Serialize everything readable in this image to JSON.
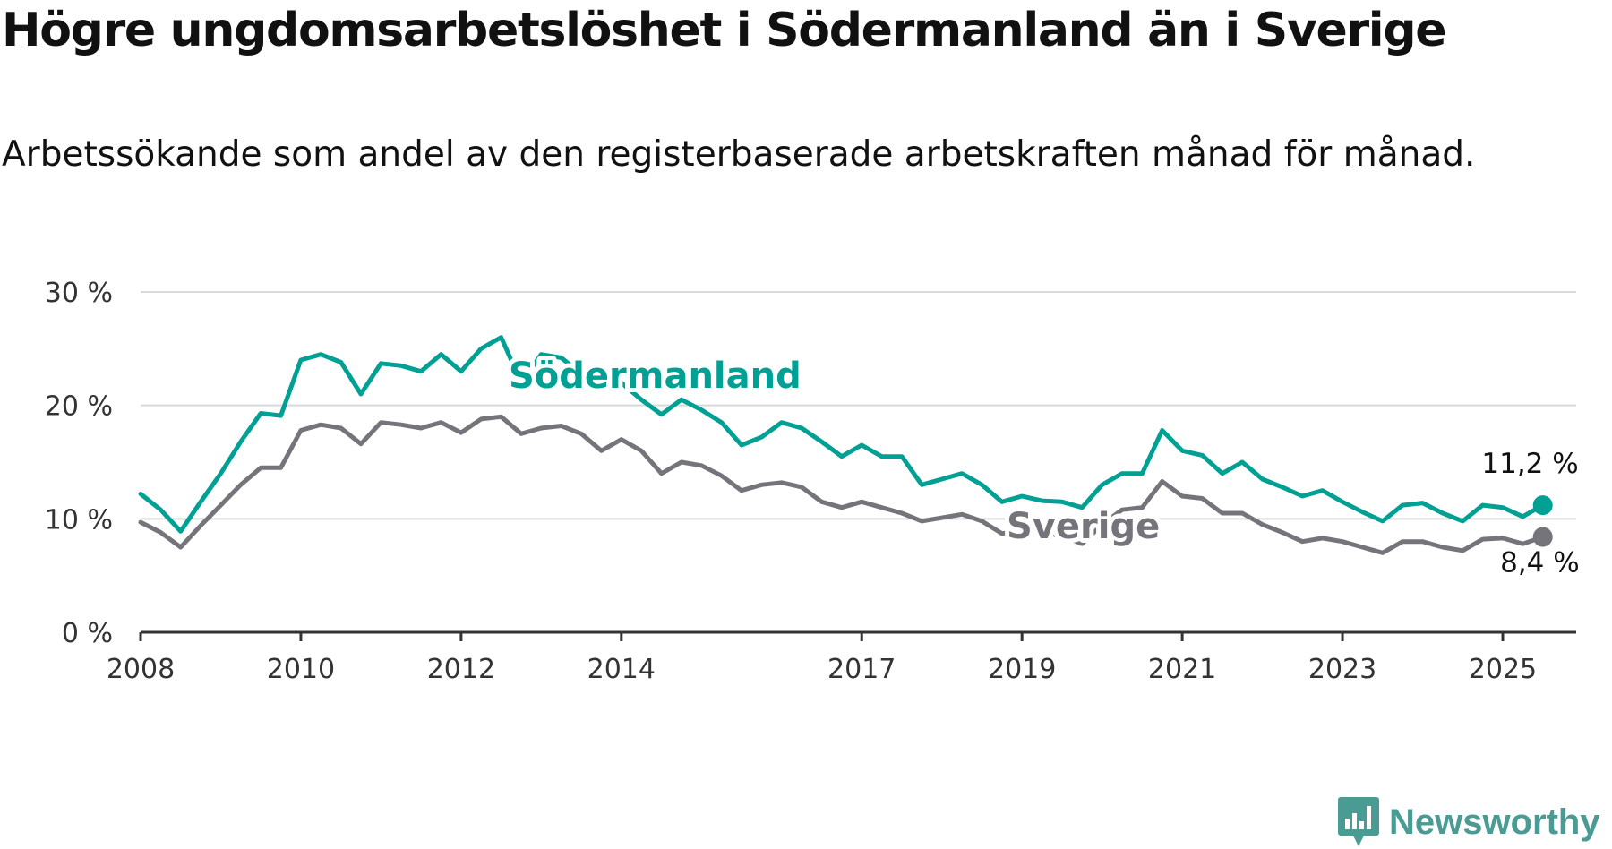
{
  "header": {
    "title": "Högre ungdomsarbetslöshet i Södermanland än i Sverige",
    "subtitle": "Arbetssökande som andel av den registerbaserade arbetskraften månad för månad."
  },
  "brand": {
    "name": "Newsworthy",
    "logo_icon": "bar-chart-bubble-icon",
    "color": "#4a9b93"
  },
  "colors": {
    "sodermanland": "#00a094",
    "sverige": "#76747b",
    "grid": "#d9d9d9",
    "axis": "#333333"
  },
  "chart_data": {
    "type": "line",
    "title": "Högre ungdomsarbetslöshet i Södermanland än i Sverige",
    "subtitle": "Arbetssökande som andel av den registerbaserade arbetskraften månad för månad.",
    "xlabel": "",
    "ylabel": "",
    "ylim": [
      0,
      30
    ],
    "xlim": [
      "2008-01",
      "2025-12"
    ],
    "y_ticks": [
      0,
      10,
      20,
      30
    ],
    "y_tick_labels": [
      "0 %",
      "10 %",
      "20 %",
      "30 %"
    ],
    "x_tick_labels": [
      "2008",
      "2010",
      "2012",
      "2014",
      "2017",
      "2019",
      "2021",
      "2023",
      "2025"
    ],
    "grid": true,
    "legend": "inline labels on lines",
    "x": [
      "2008-01",
      "2008-04",
      "2008-07",
      "2008-10",
      "2009-01",
      "2009-04",
      "2009-07",
      "2009-10",
      "2010-01",
      "2010-04",
      "2010-07",
      "2010-10",
      "2011-01",
      "2011-04",
      "2011-07",
      "2011-10",
      "2012-01",
      "2012-04",
      "2012-07",
      "2012-10",
      "2013-01",
      "2013-04",
      "2013-07",
      "2013-10",
      "2014-01",
      "2014-04",
      "2014-07",
      "2014-10",
      "2015-01",
      "2015-04",
      "2015-07",
      "2015-10",
      "2016-01",
      "2016-04",
      "2016-07",
      "2016-10",
      "2017-01",
      "2017-04",
      "2017-07",
      "2017-10",
      "2018-01",
      "2018-04",
      "2018-07",
      "2018-10",
      "2019-01",
      "2019-04",
      "2019-07",
      "2019-10",
      "2020-01",
      "2020-04",
      "2020-07",
      "2020-10",
      "2021-01",
      "2021-04",
      "2021-07",
      "2021-10",
      "2022-01",
      "2022-04",
      "2022-07",
      "2022-10",
      "2023-01",
      "2023-04",
      "2023-07",
      "2023-10",
      "2024-01",
      "2024-04",
      "2024-07",
      "2024-10",
      "2025-01",
      "2025-04",
      "2025-07"
    ],
    "series": [
      {
        "name": "Södermanland",
        "color": "#00a094",
        "values": [
          12.2,
          10.8,
          8.9,
          11.5,
          14.0,
          16.8,
          19.3,
          19.1,
          24.0,
          24.5,
          23.8,
          21.0,
          23.7,
          23.5,
          23.0,
          24.5,
          23.0,
          25.0,
          26.0,
          22.0,
          24.5,
          24.2,
          22.8,
          21.5,
          22.0,
          20.5,
          19.2,
          20.5,
          19.6,
          18.5,
          16.5,
          17.2,
          18.5,
          18.0,
          16.8,
          15.5,
          16.5,
          15.5,
          15.5,
          13.0,
          13.5,
          14.0,
          13.0,
          11.5,
          12.0,
          11.6,
          11.5,
          11.0,
          13.0,
          14.0,
          14.0,
          17.8,
          16.0,
          15.6,
          14.0,
          15.0,
          13.5,
          12.8,
          12.0,
          12.5,
          11.5,
          10.6,
          9.8,
          11.2,
          11.4,
          10.5,
          9.8,
          11.2,
          11.0,
          10.2,
          11.2
        ]
      },
      {
        "name": "Sverige",
        "color": "#76747b",
        "values": [
          9.7,
          8.8,
          7.5,
          9.4,
          11.2,
          13.0,
          14.5,
          14.5,
          17.8,
          18.3,
          18.0,
          16.6,
          18.5,
          18.3,
          18.0,
          18.5,
          17.6,
          18.8,
          19.0,
          17.5,
          18.0,
          18.2,
          17.5,
          16.0,
          17.0,
          16.0,
          14.0,
          15.0,
          14.7,
          13.8,
          12.5,
          13.0,
          13.2,
          12.8,
          11.5,
          11.0,
          11.5,
          11.0,
          10.5,
          9.8,
          10.1,
          10.4,
          9.8,
          8.7,
          9.0,
          8.8,
          8.5,
          7.8,
          9.5,
          10.8,
          11.0,
          13.3,
          12.0,
          11.8,
          10.5,
          10.5,
          9.5,
          8.8,
          8.0,
          8.3,
          8.0,
          7.5,
          7.0,
          8.0,
          8.0,
          7.5,
          7.2,
          8.2,
          8.3,
          7.8,
          8.4
        ]
      }
    ],
    "annotations": [
      {
        "series": "Södermanland",
        "text": "11,2 %",
        "value": 11.2
      },
      {
        "series": "Sverige",
        "text": "8,4 %",
        "value": 8.4
      }
    ],
    "series_labels": [
      "Södermanland",
      "Sverige"
    ]
  }
}
